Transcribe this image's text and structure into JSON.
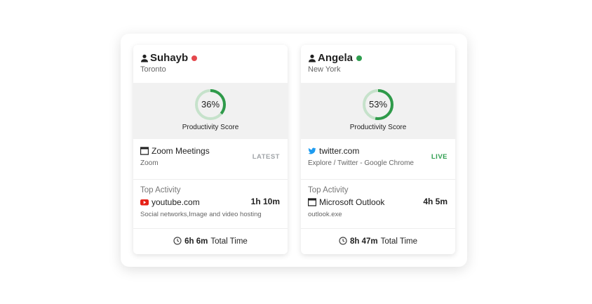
{
  "cards": [
    {
      "name": "Suhayb",
      "presence_color": "#e5484d",
      "location": "Toronto",
      "score": {
        "value": 36,
        "label": "36%"
      },
      "score_label": "Productivity Score",
      "current_app": {
        "name": "Zoom Meetings",
        "detail": "Zoom",
        "status": "LATEST",
        "status_color": "#a0a4a8"
      },
      "top_activity": {
        "heading": "Top Activity",
        "app": "youtube.com",
        "duration": "1h 10m",
        "detail": "Social networks,Image and video hosting"
      },
      "total_time": {
        "value": "6h 6m",
        "label": "Total Time"
      }
    },
    {
      "name": "Angela",
      "presence_color": "#2e9e4f",
      "location": "New York",
      "score": {
        "value": 53,
        "label": "53%"
      },
      "score_label": "Productivity Score",
      "current_app": {
        "name": "twitter.com",
        "detail": "Explore / Twitter - Google Chrome",
        "status": "LIVE",
        "status_color": "#2e9e4f"
      },
      "top_activity": {
        "heading": "Top Activity",
        "app": "Microsoft Outlook",
        "duration": "4h 5m",
        "detail": "outlook.exe"
      },
      "total_time": {
        "value": "8h 47m",
        "label": "Total Time"
      }
    }
  ]
}
